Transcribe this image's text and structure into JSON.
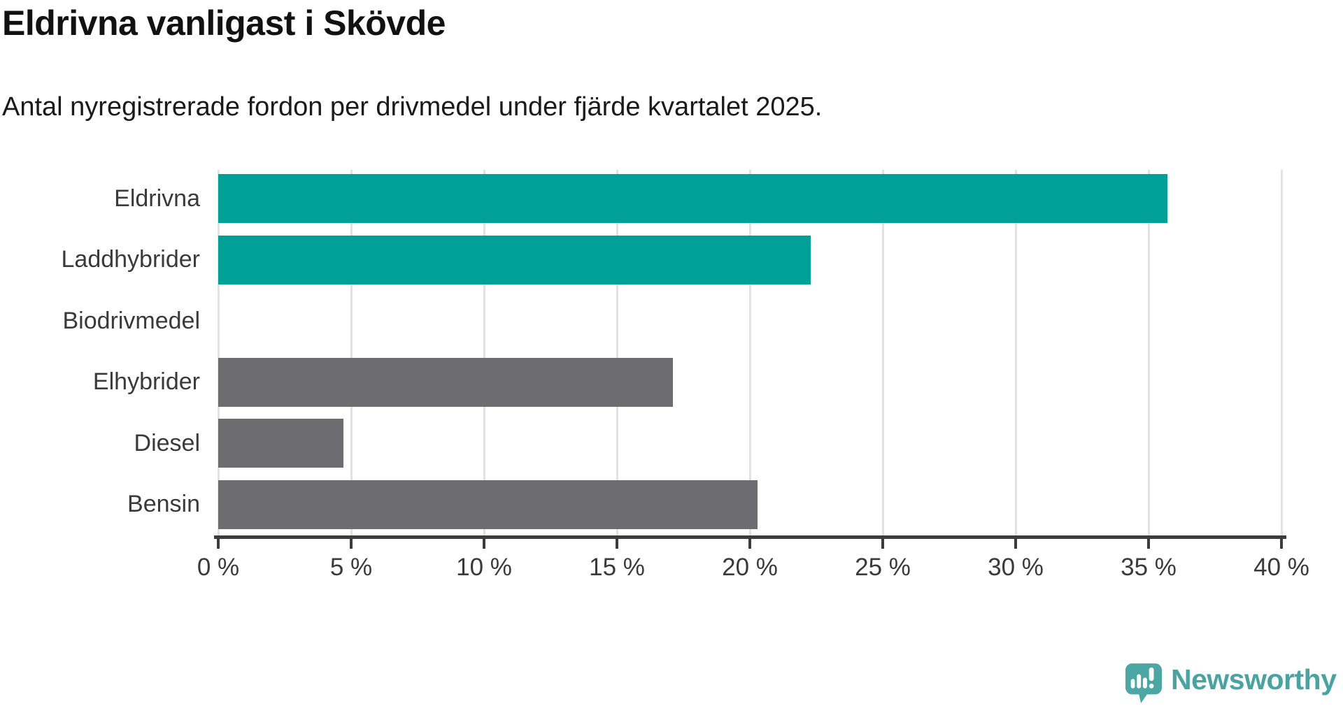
{
  "title": "Eldrivna vanligast i Skövde",
  "subtitle": "Antal nyregistrerade fordon per drivmedel under fjärde kvartalet 2025.",
  "chart_data": {
    "type": "bar",
    "orientation": "horizontal",
    "categories": [
      "Eldrivna",
      "Laddhybrider",
      "Biodrivmedel",
      "Elhybrider",
      "Diesel",
      "Bensin"
    ],
    "values": [
      35.7,
      22.3,
      0,
      17.1,
      4.7,
      20.3
    ],
    "unit": "%",
    "bar_colors": [
      "#00a099",
      "#00a099",
      "#6d6d71",
      "#6d6d71",
      "#6d6d71",
      "#6d6d71"
    ],
    "highlight_color": "#00a099",
    "default_color": "#6d6d71",
    "xlim": [
      0,
      40
    ],
    "xticks": [
      0,
      5,
      10,
      15,
      20,
      25,
      30,
      35,
      40
    ],
    "xtick_labels": [
      "0 %",
      "5 %",
      "10 %",
      "15 %",
      "20 %",
      "25 %",
      "30 %",
      "35 %",
      "40 %"
    ],
    "grid": true,
    "gridline_color": "#e2e2e2",
    "axis_color": "#3c3c3c",
    "label_color": "#3a3a3a",
    "title": "Eldrivna vanligast i Skövde",
    "xlabel": "",
    "ylabel": ""
  },
  "branding": {
    "logo_text": "Newsworthy",
    "logo_color": "#4ba3a1",
    "logo_icon": "newsworthy-speech-bubble-chart-icon",
    "logo_icon_color": "#4ba6a4"
  }
}
